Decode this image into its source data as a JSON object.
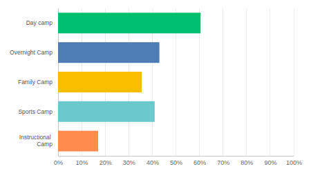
{
  "chart_data": {
    "type": "bar",
    "orientation": "horizontal",
    "categories": [
      "Day camp",
      "Overnight Camp",
      "Family Camp",
      "Sports Camp",
      "Instructional Camp"
    ],
    "values": [
      60.5,
      43,
      35.5,
      41,
      17
    ],
    "colors": [
      "#00bf6f",
      "#507cb6",
      "#f9be00",
      "#6bc8cd",
      "#ff8b4f"
    ],
    "xlim": [
      0,
      100
    ],
    "xticks": [
      {
        "value": 0,
        "label": "0%"
      },
      {
        "value": 10,
        "label": "10%"
      },
      {
        "value": 20,
        "label": "20%"
      },
      {
        "value": 30,
        "label": "30%"
      },
      {
        "value": 40,
        "label": "40%"
      },
      {
        "value": 50,
        "label": "50%"
      },
      {
        "value": 60,
        "label": "60%"
      },
      {
        "value": 70,
        "label": "70%"
      },
      {
        "value": 80,
        "label": "80%"
      },
      {
        "value": 90,
        "label": "90%"
      },
      {
        "value": 100,
        "label": "100%"
      }
    ],
    "grid": true
  }
}
